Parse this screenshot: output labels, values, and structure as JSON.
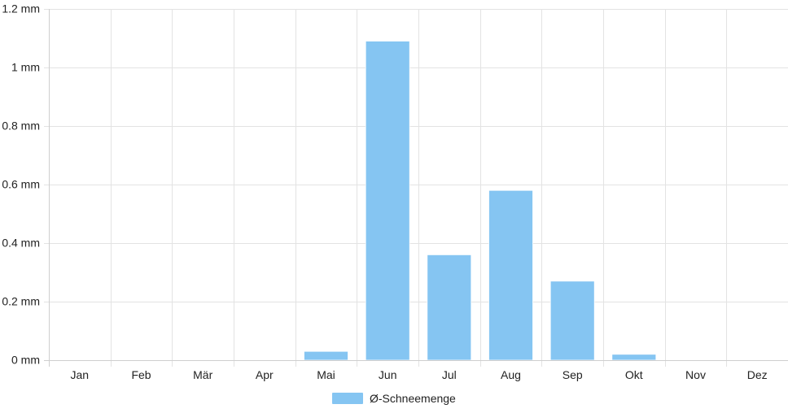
{
  "chart_data": {
    "type": "bar",
    "categories": [
      "Jan",
      "Feb",
      "Mär",
      "Apr",
      "Mai",
      "Jun",
      "Jul",
      "Aug",
      "Sep",
      "Okt",
      "Nov",
      "Dez"
    ],
    "series": [
      {
        "name": "Ø-Schneemenge",
        "values": [
          0,
          0,
          0,
          0,
          0.03,
          1.09,
          0.36,
          0.58,
          0.27,
          0.02,
          0,
          0
        ],
        "color": "#85c5f2"
      }
    ],
    "ylim": [
      0,
      1.2
    ],
    "yticks": [
      0,
      0.2,
      0.4,
      0.6,
      0.8,
      1,
      1.2
    ],
    "ytick_labels": [
      "0 mm",
      "0.2 mm",
      "0.4 mm",
      "0.6 mm",
      "0.8 mm",
      "1 mm",
      "1.2 mm"
    ],
    "grid": true,
    "legend_placement": "bottom-center",
    "colors": {
      "grid": "#e3e3e3",
      "axis": "#cfcfcf",
      "text": "#222222"
    }
  }
}
